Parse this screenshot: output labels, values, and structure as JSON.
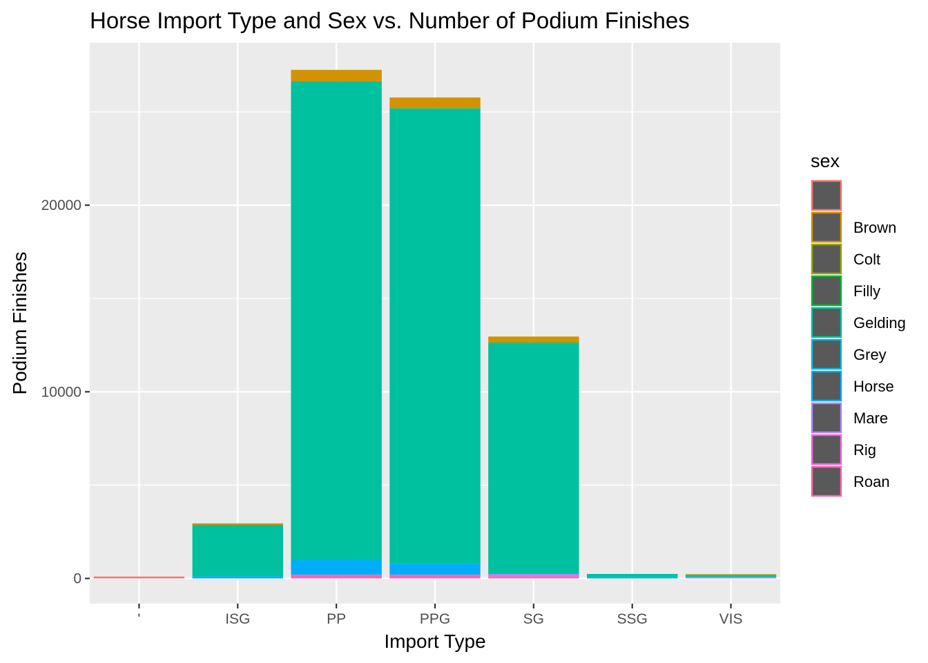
{
  "chart_data": {
    "type": "bar",
    "stacked": true,
    "title": "Horse Import Type and Sex vs. Number of Podium Finishes",
    "xlabel": "Import Type",
    "ylabel": "Podium Finishes",
    "categories": [
      "'",
      "ISG",
      "PP",
      "PPG",
      "SG",
      "SSG",
      "VIS"
    ],
    "ylim": [
      -1350,
      28700
    ],
    "yticks": [
      0,
      10000,
      20000
    ],
    "yticks_minor": [
      5000,
      15000,
      25000
    ],
    "grid": true,
    "legend": {
      "title": "sex",
      "placement": "right",
      "entries": [
        "",
        "Brown",
        "Colt",
        "Filly",
        "Gelding",
        "Grey",
        "Horse",
        "Mare",
        "Rig",
        "Roan"
      ]
    },
    "series": [
      {
        "name": "",
        "color": "#F8766D",
        "values": [
          100,
          0,
          0,
          0,
          0,
          0,
          0
        ]
      },
      {
        "name": "Brown",
        "color": "#D39200",
        "values": [
          0,
          80,
          620,
          580,
          320,
          0,
          40
        ]
      },
      {
        "name": "Colt",
        "color": "#93AA00",
        "values": [
          0,
          0,
          0,
          0,
          0,
          0,
          0
        ]
      },
      {
        "name": "Filly",
        "color": "#00BA38",
        "values": [
          0,
          0,
          0,
          0,
          0,
          0,
          0
        ]
      },
      {
        "name": "Gelding",
        "color": "#00C19F",
        "values": [
          0,
          2750,
          25650,
          24400,
          12400,
          160,
          120
        ]
      },
      {
        "name": "Grey",
        "color": "#00B9E3",
        "values": [
          0,
          0,
          0,
          0,
          0,
          0,
          0
        ]
      },
      {
        "name": "Horse",
        "color": "#00ADFA",
        "values": [
          0,
          120,
          780,
          590,
          0,
          80,
          0
        ]
      },
      {
        "name": "Mare",
        "color": "#AE87FF",
        "values": [
          0,
          0,
          0,
          0,
          120,
          0,
          70
        ]
      },
      {
        "name": "Rig",
        "color": "#F564E3",
        "values": [
          0,
          0,
          0,
          0,
          0,
          0,
          0
        ]
      },
      {
        "name": "Roan",
        "color": "#FF64B0",
        "values": [
          0,
          0,
          200,
          200,
          120,
          0,
          0
        ]
      }
    ]
  }
}
